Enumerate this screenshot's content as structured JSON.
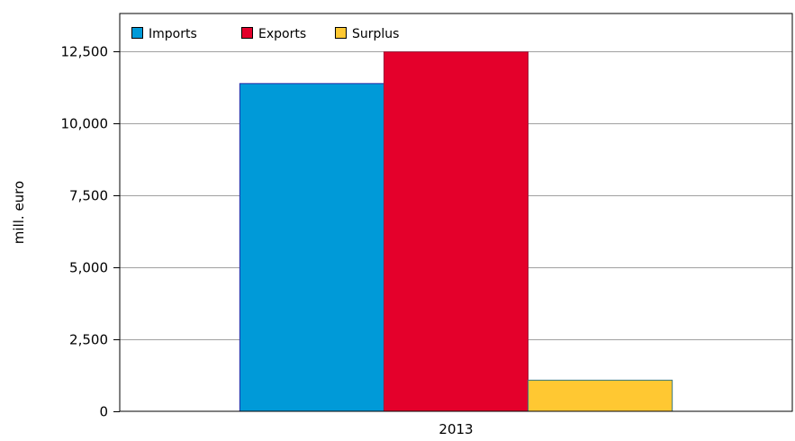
{
  "chart_data": {
    "type": "bar",
    "categories": [
      "2013"
    ],
    "series": [
      {
        "name": "Imports",
        "values": [
          11370
        ],
        "color": "#009ad8",
        "stroke": "#2a2aa8"
      },
      {
        "name": "Exports",
        "values": [
          12470
        ],
        "color": "#e4002b",
        "stroke": "#9a2040"
      },
      {
        "name": "Surplus",
        "values": [
          1080
        ],
        "color": "#ffc832",
        "stroke": "#3a7a80"
      }
    ],
    "title": "",
    "xlabel": "",
    "ylabel": "mill. euro",
    "ylim": [
      0,
      13800
    ],
    "yticks": [
      0,
      2500,
      5000,
      7500,
      10000,
      12500
    ],
    "ytick_labels": [
      "0",
      "2,500",
      "5,000",
      "7,500",
      "10,000",
      "12,500"
    ],
    "grid": true,
    "legend_position": "top-left"
  }
}
